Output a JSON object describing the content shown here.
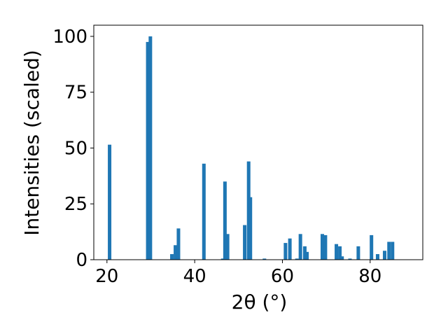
{
  "chart_data": {
    "type": "bar",
    "title": "",
    "xlabel": "2θ (°)",
    "ylabel": "Intensities (scaled)",
    "xlim": [
      17,
      92
    ],
    "ylim": [
      0,
      105
    ],
    "x_ticks": [
      20,
      40,
      60,
      80
    ],
    "y_ticks": [
      0,
      25,
      50,
      75,
      100
    ],
    "grid": false,
    "legend": "none",
    "bar_width_deg": 0.8,
    "color": "#1f77b4",
    "points": [
      {
        "x": 20.6,
        "y": 51.5
      },
      {
        "x": 29.3,
        "y": 97.5
      },
      {
        "x": 29.9,
        "y": 100
      },
      {
        "x": 34.8,
        "y": 2.5
      },
      {
        "x": 35.6,
        "y": 6.5
      },
      {
        "x": 36.3,
        "y": 14
      },
      {
        "x": 42.1,
        "y": 43
      },
      {
        "x": 46.4,
        "y": 0.5
      },
      {
        "x": 46.9,
        "y": 35
      },
      {
        "x": 47.5,
        "y": 11.5
      },
      {
        "x": 51.4,
        "y": 15.5
      },
      {
        "x": 52.3,
        "y": 44
      },
      {
        "x": 52.7,
        "y": 28
      },
      {
        "x": 55.9,
        "y": 0.5
      },
      {
        "x": 60.7,
        "y": 7.5
      },
      {
        "x": 61.7,
        "y": 9.5
      },
      {
        "x": 63.3,
        "y": 0.5
      },
      {
        "x": 64.1,
        "y": 11.5
      },
      {
        "x": 65.1,
        "y": 6
      },
      {
        "x": 65.6,
        "y": 3.5
      },
      {
        "x": 69.1,
        "y": 11.5
      },
      {
        "x": 69.8,
        "y": 11
      },
      {
        "x": 72.3,
        "y": 7
      },
      {
        "x": 73.1,
        "y": 6
      },
      {
        "x": 73.6,
        "y": 1.5
      },
      {
        "x": 75.4,
        "y": 0.5
      },
      {
        "x": 77.3,
        "y": 6
      },
      {
        "x": 80.3,
        "y": 11
      },
      {
        "x": 81.7,
        "y": 2.5
      },
      {
        "x": 83.3,
        "y": 4
      },
      {
        "x": 84.3,
        "y": 8
      },
      {
        "x": 85.1,
        "y": 8
      }
    ]
  }
}
